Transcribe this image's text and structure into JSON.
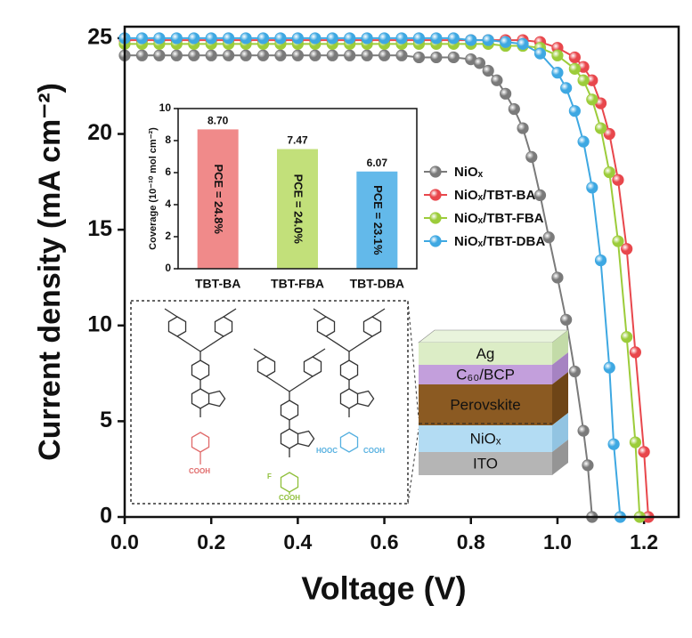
{
  "chart_data": [
    {
      "type": "line",
      "xlabel": "Voltage (V)",
      "ylabel": "Current density (mA cm⁻²)",
      "xlim": [
        0,
        1.28
      ],
      "ylim": [
        0,
        25.6
      ],
      "xticks": [
        {
          "value": 0,
          "label": "0.0"
        },
        0.2,
        0.4,
        0.6,
        0.8,
        {
          "value": 1,
          "label": "1.0"
        },
        1.2
      ],
      "yticks": [
        0,
        5,
        10,
        15,
        20,
        25
      ],
      "legend": "right",
      "series": [
        {
          "name": "NiOₓ",
          "color": "#7a7a7a",
          "x": [
            0,
            0.04,
            0.08,
            0.12,
            0.16,
            0.2,
            0.24,
            0.28,
            0.32,
            0.36,
            0.4,
            0.44,
            0.48,
            0.52,
            0.56,
            0.6,
            0.64,
            0.68,
            0.72,
            0.76,
            0.8,
            0.82,
            0.84,
            0.86,
            0.88,
            0.9,
            0.92,
            0.94,
            0.96,
            0.98,
            1.0,
            1.02,
            1.04,
            1.06,
            1.07,
            1.08
          ],
          "values": [
            24.1,
            24.1,
            24.1,
            24.1,
            24.1,
            24.1,
            24.1,
            24.1,
            24.1,
            24.1,
            24.1,
            24.1,
            24.1,
            24.1,
            24.1,
            24.1,
            24.1,
            24.0,
            24.0,
            24.0,
            23.9,
            23.7,
            23.3,
            22.8,
            22.1,
            21.3,
            20.3,
            18.8,
            16.8,
            14.6,
            12.5,
            10.3,
            7.6,
            4.5,
            2.7,
            0
          ]
        },
        {
          "name": "NiOₓ/TBT-BA",
          "color": "#e8474c",
          "x": [
            0,
            0.04,
            0.08,
            0.12,
            0.16,
            0.2,
            0.24,
            0.28,
            0.32,
            0.36,
            0.4,
            0.44,
            0.48,
            0.52,
            0.56,
            0.6,
            0.64,
            0.68,
            0.72,
            0.76,
            0.8,
            0.84,
            0.88,
            0.92,
            0.96,
            1.0,
            1.04,
            1.06,
            1.08,
            1.1,
            1.12,
            1.14,
            1.16,
            1.18,
            1.2,
            1.21
          ],
          "values": [
            24.9,
            24.9,
            24.9,
            24.9,
            24.9,
            24.9,
            24.9,
            24.9,
            24.9,
            24.9,
            24.9,
            24.9,
            24.9,
            24.9,
            24.9,
            24.9,
            24.9,
            24.9,
            24.9,
            24.9,
            24.9,
            24.9,
            24.9,
            24.9,
            24.8,
            24.5,
            24.0,
            23.5,
            22.8,
            21.6,
            20.0,
            17.6,
            14.0,
            8.6,
            3.4,
            0
          ]
        },
        {
          "name": "NiOₓ/TBT-FBA",
          "color": "#9ccc3a",
          "x": [
            0,
            0.04,
            0.08,
            0.12,
            0.16,
            0.2,
            0.24,
            0.28,
            0.32,
            0.36,
            0.4,
            0.44,
            0.48,
            0.52,
            0.56,
            0.6,
            0.64,
            0.68,
            0.72,
            0.76,
            0.8,
            0.84,
            0.88,
            0.92,
            0.96,
            1.0,
            1.04,
            1.06,
            1.08,
            1.1,
            1.12,
            1.14,
            1.16,
            1.18,
            1.19
          ],
          "values": [
            24.7,
            24.7,
            24.7,
            24.7,
            24.7,
            24.7,
            24.7,
            24.7,
            24.7,
            24.7,
            24.7,
            24.7,
            24.7,
            24.7,
            24.7,
            24.7,
            24.7,
            24.7,
            24.7,
            24.7,
            24.7,
            24.7,
            24.6,
            24.6,
            24.5,
            24.1,
            23.4,
            22.8,
            21.8,
            20.3,
            18.0,
            14.4,
            9.4,
            3.9,
            0
          ]
        },
        {
          "name": "NiOₓ/TBT-DBA",
          "color": "#3ea8e2",
          "x": [
            0,
            0.04,
            0.08,
            0.12,
            0.16,
            0.2,
            0.24,
            0.28,
            0.32,
            0.36,
            0.4,
            0.44,
            0.48,
            0.52,
            0.56,
            0.6,
            0.64,
            0.68,
            0.72,
            0.76,
            0.8,
            0.84,
            0.88,
            0.92,
            0.96,
            1.0,
            1.02,
            1.04,
            1.06,
            1.08,
            1.1,
            1.12,
            1.13,
            1.145
          ],
          "values": [
            25.0,
            25.0,
            25.0,
            25.0,
            25.0,
            25.0,
            25.0,
            25.0,
            25.0,
            25.0,
            25.0,
            25.0,
            25.0,
            25.0,
            25.0,
            25.0,
            25.0,
            25.0,
            25.0,
            25.0,
            24.9,
            24.9,
            24.8,
            24.7,
            24.2,
            23.2,
            22.4,
            21.2,
            19.6,
            17.2,
            13.4,
            7.8,
            3.8,
            0
          ]
        }
      ]
    },
    {
      "type": "bar",
      "ylabel": "Coverage (10⁻¹⁰ mol cm⁻²)",
      "categories": [
        "TBT-BA",
        "TBT-FBA",
        "TBT-DBA"
      ],
      "values": [
        8.7,
        7.47,
        6.07
      ],
      "value_labels": [
        "8.70",
        "7.47",
        "6.07"
      ],
      "annotations": [
        "PCE = 24.8%",
        "PCE = 24.0%",
        "PCE = 23.1%"
      ],
      "colors": [
        "#f08a8a",
        "#c2e07a",
        "#63b9ea"
      ],
      "ylim": [
        0,
        10
      ],
      "yticks": [
        0,
        2,
        4,
        6,
        8,
        10
      ]
    }
  ],
  "molecules": [
    {
      "substituents": [
        "COOH"
      ]
    },
    {
      "substituents": [
        "F",
        "COOH"
      ]
    },
    {
      "substituents": [
        "HOOC",
        "COOH"
      ]
    }
  ],
  "device": {
    "layers": [
      "Ag",
      "C₆₀/BCP",
      "Perovskite",
      "NiOₓ",
      "ITO"
    ]
  }
}
